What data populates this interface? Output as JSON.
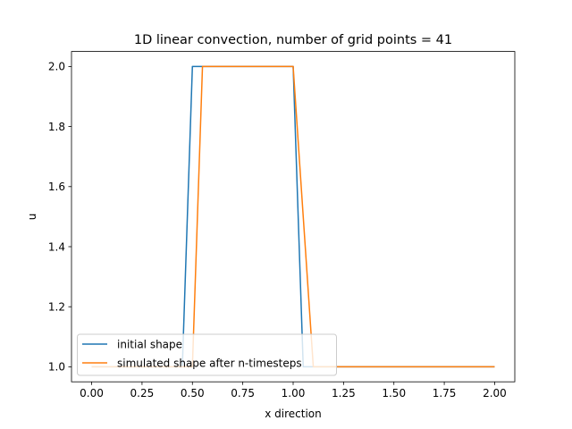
{
  "chart_data": {
    "type": "line",
    "title": "1D linear convection, number of grid points = 41",
    "xlabel": "x direction",
    "ylabel": "u",
    "xlim": [
      -0.1,
      2.1
    ],
    "ylim": [
      0.95,
      2.05
    ],
    "xticks": [
      0.0,
      0.25,
      0.5,
      0.75,
      1.0,
      1.25,
      1.5,
      1.75,
      2.0
    ],
    "xtick_labels": [
      "0.00",
      "0.25",
      "0.50",
      "0.75",
      "1.00",
      "1.25",
      "1.50",
      "1.75",
      "2.00"
    ],
    "yticks": [
      1.0,
      1.2,
      1.4,
      1.6,
      1.8,
      2.0
    ],
    "ytick_labels": [
      "1.0",
      "1.2",
      "1.4",
      "1.6",
      "1.8",
      "2.0"
    ],
    "grid": false,
    "legend_position": "lower-left",
    "series": [
      {
        "name": "initial shape",
        "color": "#1f77b4",
        "x": [
          0.0,
          0.45,
          0.5,
          1.0,
          1.05,
          2.0
        ],
        "y": [
          1.0,
          1.0,
          2.0,
          2.0,
          1.0,
          1.0
        ]
      },
      {
        "name": "simulated shape after n-timesteps",
        "color": "#ff7f0e",
        "x": [
          0.0,
          0.5,
          0.55,
          1.0,
          1.1,
          2.0
        ],
        "y": [
          1.0,
          1.0,
          2.0,
          2.0,
          1.0,
          1.0
        ]
      }
    ]
  }
}
